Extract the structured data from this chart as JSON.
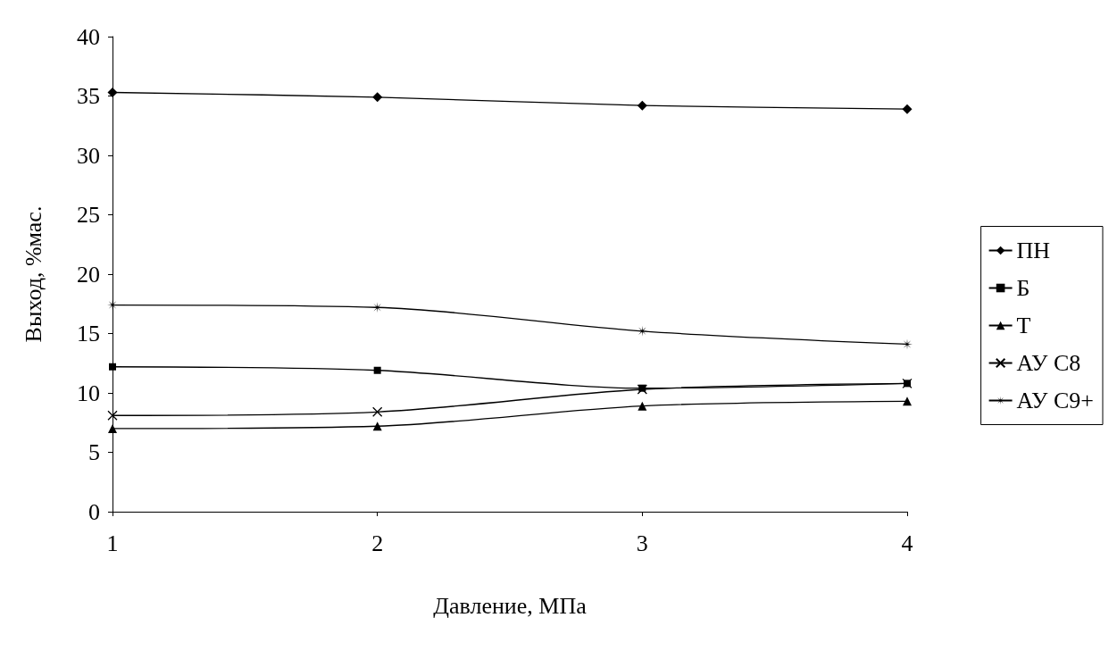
{
  "chart_data": {
    "type": "line",
    "xlabel": "Давление, МПа",
    "ylabel": "Выход, %мас.",
    "categories": [
      "1",
      "2",
      "3",
      "4"
    ],
    "ylim": [
      0,
      40
    ],
    "yticks": [
      0,
      5,
      10,
      15,
      20,
      25,
      30,
      35,
      40
    ],
    "grid": false,
    "legend": "right",
    "line_style": "solid",
    "series": [
      {
        "name": "ПН",
        "color": "#000000",
        "marker": "diamond",
        "values": [
          35.3,
          34.9,
          34.2,
          33.9
        ]
      },
      {
        "name": "Б",
        "color": "#000000",
        "marker": "square",
        "values": [
          12.2,
          11.9,
          10.4,
          10.8
        ]
      },
      {
        "name": "Т",
        "color": "#000000",
        "marker": "triangle",
        "values": [
          7.0,
          7.2,
          8.9,
          9.3
        ]
      },
      {
        "name": "АУ С8",
        "color": "#000000",
        "marker": "cross",
        "values": [
          8.1,
          8.4,
          10.3,
          10.8
        ]
      },
      {
        "name": "АУ С9+",
        "color": "#000000",
        "marker": "star",
        "values": [
          17.4,
          17.2,
          15.2,
          14.1
        ]
      }
    ]
  }
}
